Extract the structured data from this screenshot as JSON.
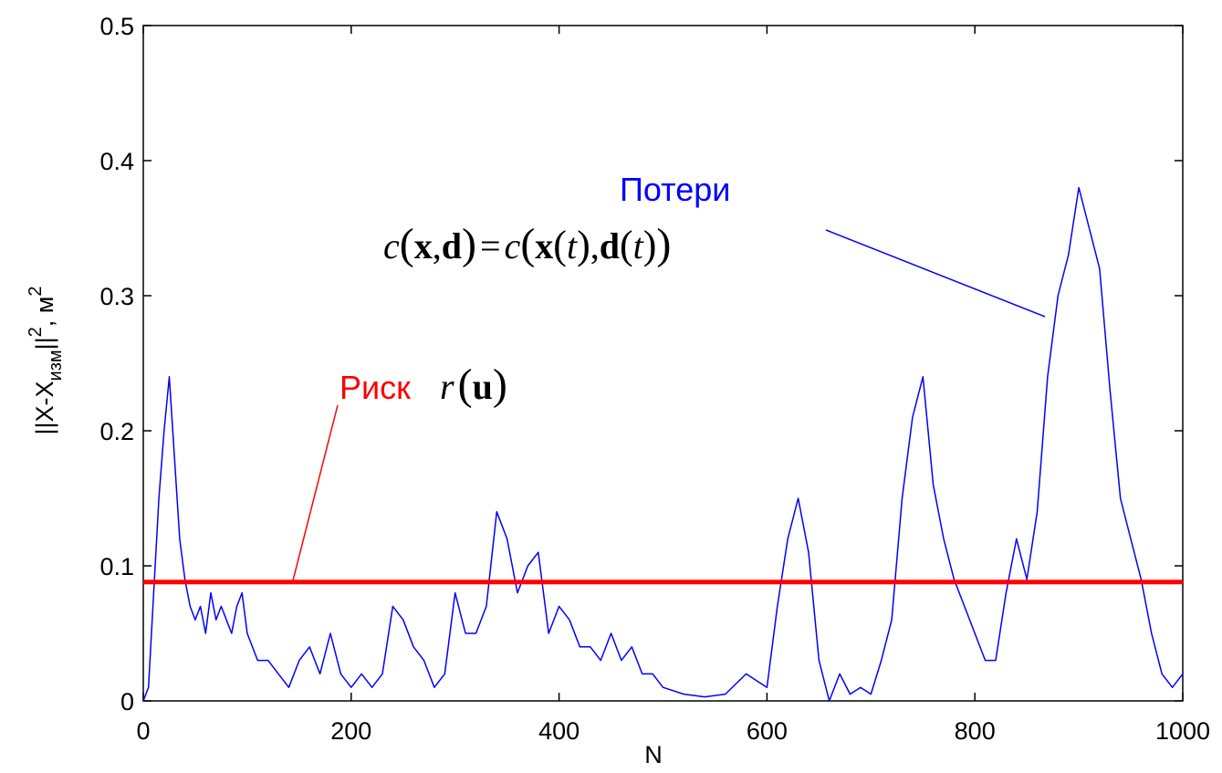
{
  "chart_data": {
    "type": "line",
    "title": "",
    "xlabel": "N",
    "ylabel": {
      "prefix": "||X-X",
      "subscript": "изм",
      "middle": "||",
      "superscript": "2",
      "unit": ", м",
      "unit_superscript": "2"
    },
    "xlim": [
      0,
      1000
    ],
    "ylim": [
      0,
      0.5
    ],
    "x_ticks": [
      "0",
      "200",
      "400",
      "600",
      "800",
      "1000"
    ],
    "y_ticks": [
      "0",
      "0.1",
      "0.2",
      "0.3",
      "0.4",
      "0.5"
    ],
    "grid": false,
    "series": [
      {
        "color": "#0000ff",
        "x": [
          0,
          5,
          10,
          15,
          20,
          25,
          30,
          35,
          40,
          45,
          50,
          55,
          60,
          65,
          70,
          75,
          80,
          85,
          90,
          95,
          100,
          110,
          120,
          130,
          140,
          150,
          160,
          170,
          180,
          190,
          200,
          210,
          220,
          230,
          240,
          250,
          260,
          270,
          280,
          290,
          300,
          310,
          320,
          330,
          340,
          350,
          360,
          370,
          380,
          390,
          400,
          410,
          420,
          430,
          440,
          450,
          460,
          470,
          480,
          490,
          500,
          520,
          540,
          560,
          580,
          600,
          610,
          620,
          630,
          640,
          650,
          660,
          670,
          680,
          690,
          700,
          710,
          720,
          730,
          740,
          750,
          760,
          770,
          780,
          790,
          800,
          810,
          820,
          830,
          840,
          850,
          860,
          870,
          880,
          890,
          900,
          910,
          920,
          930,
          940,
          950,
          960,
          970,
          980,
          990,
          1000
        ],
        "y": [
          0.0,
          0.01,
          0.08,
          0.15,
          0.2,
          0.24,
          0.18,
          0.12,
          0.09,
          0.07,
          0.06,
          0.07,
          0.05,
          0.08,
          0.06,
          0.07,
          0.06,
          0.05,
          0.07,
          0.08,
          0.05,
          0.03,
          0.03,
          0.02,
          0.01,
          0.03,
          0.04,
          0.02,
          0.05,
          0.02,
          0.01,
          0.02,
          0.01,
          0.02,
          0.07,
          0.06,
          0.04,
          0.03,
          0.01,
          0.02,
          0.08,
          0.05,
          0.05,
          0.07,
          0.14,
          0.12,
          0.08,
          0.1,
          0.11,
          0.05,
          0.07,
          0.06,
          0.04,
          0.04,
          0.03,
          0.05,
          0.03,
          0.04,
          0.02,
          0.02,
          0.01,
          0.005,
          0.003,
          0.005,
          0.02,
          0.01,
          0.07,
          0.12,
          0.15,
          0.11,
          0.03,
          0.0,
          0.02,
          0.005,
          0.01,
          0.005,
          0.03,
          0.06,
          0.15,
          0.21,
          0.24,
          0.16,
          0.12,
          0.09,
          0.07,
          0.05,
          0.03,
          0.03,
          0.08,
          0.12,
          0.09,
          0.14,
          0.24,
          0.3,
          0.33,
          0.38,
          0.35,
          0.32,
          0.23,
          0.15,
          0.12,
          0.09,
          0.05,
          0.02,
          0.01,
          0.02
        ]
      },
      {
        "color": "#ff0000",
        "x": [
          0,
          1000
        ],
        "y": [
          0.088,
          0.088
        ]
      }
    ],
    "annotations": {
      "risk": {
        "word": "Риск",
        "formula_fn": "r",
        "formula_arg": "u",
        "color": "#ff0000"
      },
      "loss": {
        "word": "Потери",
        "formula": "c(x,d) = c(x(t),d(t))",
        "color": "#0000ff"
      }
    }
  }
}
